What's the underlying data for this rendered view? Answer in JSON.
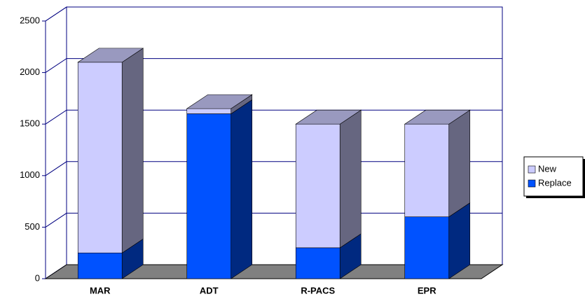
{
  "chart_data": {
    "type": "bar3d_stacked",
    "categories": [
      "MAR",
      "ADT",
      "R-PACS",
      "EPR"
    ],
    "series": [
      {
        "name": "Replace",
        "color": "#0052ff",
        "values": [
          250,
          1600,
          300,
          600
        ]
      },
      {
        "name": "New",
        "color": "#ccccff",
        "values": [
          1850,
          50,
          1200,
          900
        ]
      }
    ],
    "ylim": [
      0,
      2500
    ],
    "yticks": [
      0,
      500,
      1000,
      1500,
      2000,
      2500
    ],
    "grid": true,
    "legend": "right"
  }
}
